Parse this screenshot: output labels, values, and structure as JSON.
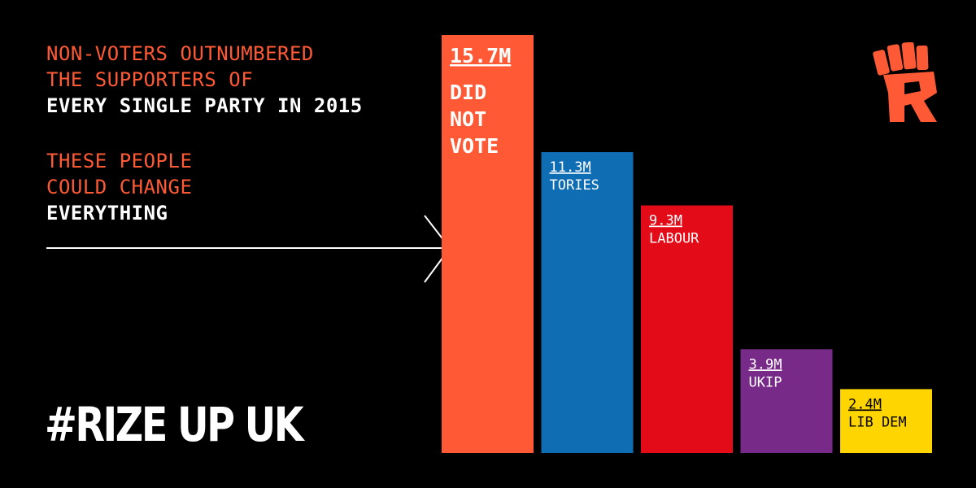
{
  "headline": {
    "line1": "NON-VOTERS OUTNUMBERED",
    "line2": "THE SUPPORTERS OF",
    "line3": "EVERY SINGLE PARTY IN 2015",
    "line4": "THESE PEOPLE",
    "line5": "COULD CHANGE",
    "line6": "EVERYTHING"
  },
  "hashtag": "#RIZE UP UK",
  "colors": {
    "accent": "#ff5a35",
    "text": "#ffffff",
    "background": "#000000"
  },
  "chart_data": {
    "type": "bar",
    "categories": [
      "DID NOT VOTE",
      "TORIES",
      "LABOUR",
      "UKIP",
      "LIB DEM"
    ],
    "category_lines": [
      [
        "DID",
        "NOT",
        "VOTE"
      ],
      [
        "TORIES"
      ],
      [
        "LABOUR"
      ],
      [
        "UKIP"
      ],
      [
        "LIB DEM"
      ]
    ],
    "values": [
      15.7,
      11.3,
      9.3,
      3.9,
      2.4
    ],
    "value_labels": [
      "15.7M",
      "11.3M",
      "9.3M",
      "3.9M",
      "2.4M"
    ],
    "colors": [
      "#ff5a35",
      "#0f6db3",
      "#e30b17",
      "#772a87",
      "#ffd500"
    ],
    "label_colors": [
      "#ffffff",
      "#ffffff",
      "#ffffff",
      "#ffffff",
      "#000000"
    ],
    "title": "",
    "xlabel": "",
    "ylabel": "",
    "ylim": [
      0,
      15.7
    ],
    "grid": false,
    "legend": "none"
  },
  "icons": {
    "logo": "raised-fist-r-logo",
    "arrow": "right-arrow-icon"
  }
}
